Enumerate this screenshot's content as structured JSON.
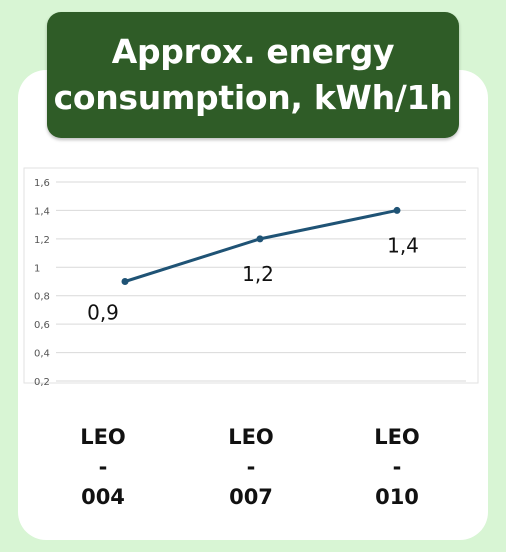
{
  "title": "Approx. energy consumption, kWh/1h",
  "chart_data": {
    "type": "line",
    "categories": [
      "LEO - 004",
      "LEO - 007",
      "LEO - 010"
    ],
    "category_lines": [
      [
        "LEO",
        "-",
        "004"
      ],
      [
        "LEO",
        "-",
        "007"
      ],
      [
        "LEO",
        "-",
        "010"
      ]
    ],
    "series": [
      {
        "values": [
          0.9,
          1.2,
          1.4
        ],
        "data_labels": [
          "0,9",
          "1,2",
          "1,4"
        ]
      }
    ],
    "yticks": [
      "0,2",
      "0,4",
      "0,6",
      "0,8",
      "1",
      "1,2",
      "1,4",
      "1,6"
    ],
    "ylim": [
      0.2,
      1.6
    ],
    "grid": true,
    "line_color": "#1f5375"
  }
}
